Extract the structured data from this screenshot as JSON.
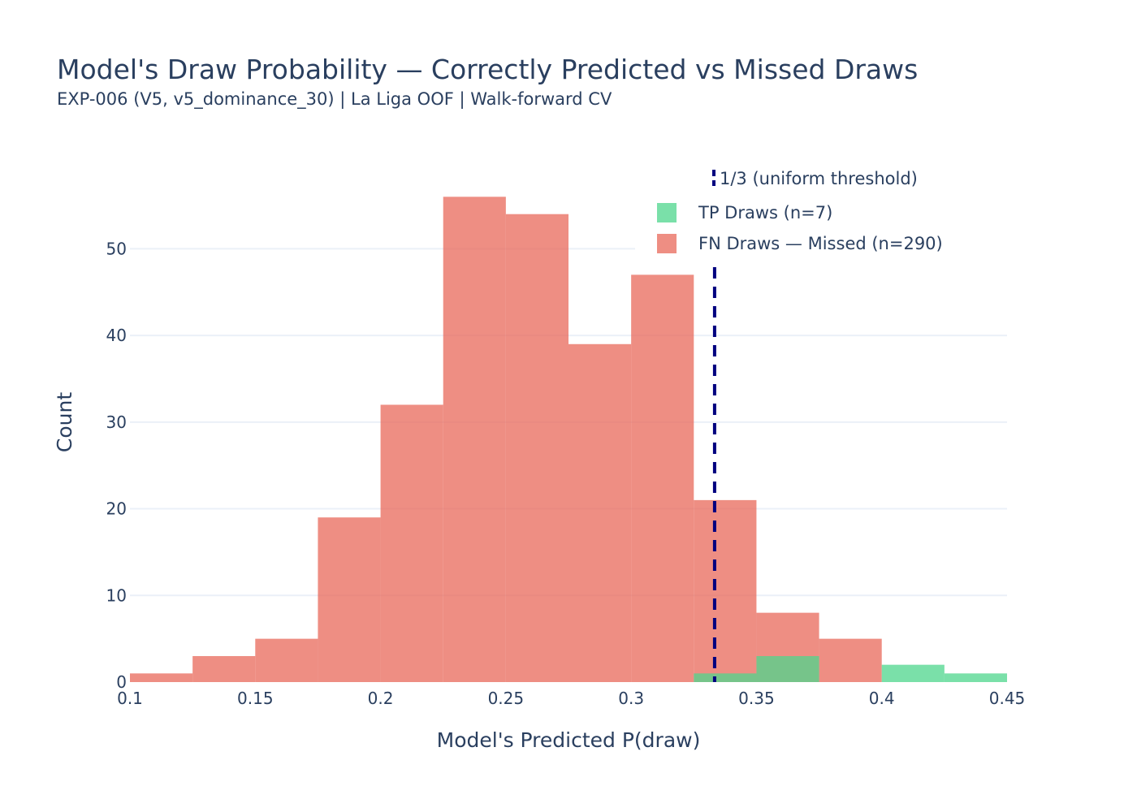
{
  "chart_data": {
    "type": "bar",
    "title": "Model's Draw Probability — Correctly Predicted vs Missed Draws",
    "subtitle": "EXP-006 (V5, v5_dominance_30) | La Liga OOF | Walk-forward CV",
    "xlabel": "Model's Predicted P(draw)",
    "ylabel": "Count",
    "xlim": [
      0.1,
      0.45
    ],
    "ylim": [
      0,
      58
    ],
    "xticks": [
      0.1,
      0.15,
      0.2,
      0.25,
      0.3,
      0.35,
      0.4,
      0.45
    ],
    "xtick_labels": [
      "0.1",
      "0.15",
      "0.2",
      "0.25",
      "0.3",
      "0.35",
      "0.4",
      "0.45"
    ],
    "yticks": [
      0,
      10,
      20,
      30,
      40,
      50
    ],
    "ytick_labels": [
      "0",
      "10",
      "20",
      "30",
      "40",
      "50"
    ],
    "grid": true,
    "legend_position": "top-right",
    "bin_width": 0.025,
    "series": [
      {
        "name": "FN Draws — Missed (n=290)",
        "color": "#e8685a",
        "bins": [
          {
            "x0": 0.1,
            "value": 1
          },
          {
            "x0": 0.125,
            "value": 3
          },
          {
            "x0": 0.15,
            "value": 5
          },
          {
            "x0": 0.175,
            "value": 19
          },
          {
            "x0": 0.2,
            "value": 32
          },
          {
            "x0": 0.225,
            "value": 56
          },
          {
            "x0": 0.25,
            "value": 54
          },
          {
            "x0": 0.275,
            "value": 39
          },
          {
            "x0": 0.3,
            "value": 47
          },
          {
            "x0": 0.325,
            "value": 21
          },
          {
            "x0": 0.35,
            "value": 8
          },
          {
            "x0": 0.375,
            "value": 5
          }
        ]
      },
      {
        "name": "TP Draws (n=7)",
        "color": "#4dd68c",
        "bins": [
          {
            "x0": 0.325,
            "value": 1
          },
          {
            "x0": 0.35,
            "value": 3
          },
          {
            "x0": 0.4,
            "value": 2
          },
          {
            "x0": 0.425,
            "value": 1
          }
        ]
      }
    ],
    "reference_line": {
      "name": "1/3 (uniform threshold)",
      "x": 0.3333,
      "color": "#00007f",
      "style": "dashed"
    }
  }
}
